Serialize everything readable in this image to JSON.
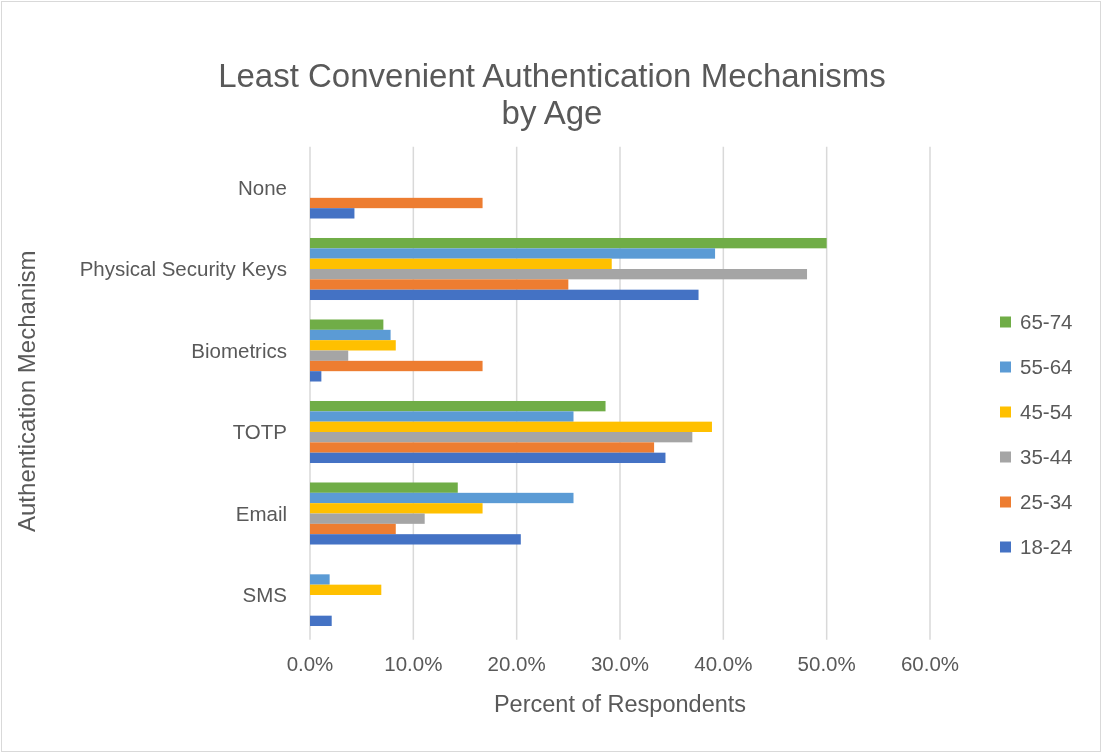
{
  "chart_data": {
    "type": "bar",
    "orientation": "horizontal",
    "title": "Least Convenient Authentication Mechanisms\nby Age",
    "xlabel": "Percent of Respondents",
    "ylabel": "Authentication Mechanism",
    "categories": [
      "None",
      "Physical Security Keys",
      "Biometrics",
      "TOTP",
      "Email",
      "SMS"
    ],
    "series": [
      {
        "name": "65-74",
        "color": "#70ad47",
        "values": [
          null,
          50.0,
          7.1,
          28.6,
          14.3,
          null
        ]
      },
      {
        "name": "55-64",
        "color": "#5b9bd5",
        "values": [
          null,
          39.2,
          7.8,
          25.5,
          25.5,
          1.9
        ]
      },
      {
        "name": "45-54",
        "color": "#ffc000",
        "values": [
          null,
          29.2,
          8.3,
          38.9,
          16.7,
          6.9
        ]
      },
      {
        "name": "35-44",
        "color": "#a5a5a5",
        "values": [
          null,
          48.1,
          3.7,
          37.0,
          11.1,
          null
        ]
      },
      {
        "name": "25-34",
        "color": "#ed7d31",
        "values": [
          16.7,
          25.0,
          16.7,
          33.3,
          8.3,
          null
        ]
      },
      {
        "name": "18-24",
        "color": "#4472c4",
        "values": [
          4.3,
          37.6,
          1.1,
          34.4,
          20.4,
          2.1
        ]
      }
    ],
    "xlim": [
      0,
      60
    ],
    "xticks": [
      {
        "value": 0,
        "label": "0.0%"
      },
      {
        "value": 10,
        "label": "10.0%"
      },
      {
        "value": 20,
        "label": "20.0%"
      },
      {
        "value": 30,
        "label": "30.0%"
      },
      {
        "value": 40,
        "label": "40.0%"
      },
      {
        "value": 50,
        "label": "50.0%"
      },
      {
        "value": 60,
        "label": "60.0%"
      }
    ],
    "grid": "x",
    "legend": "right"
  }
}
